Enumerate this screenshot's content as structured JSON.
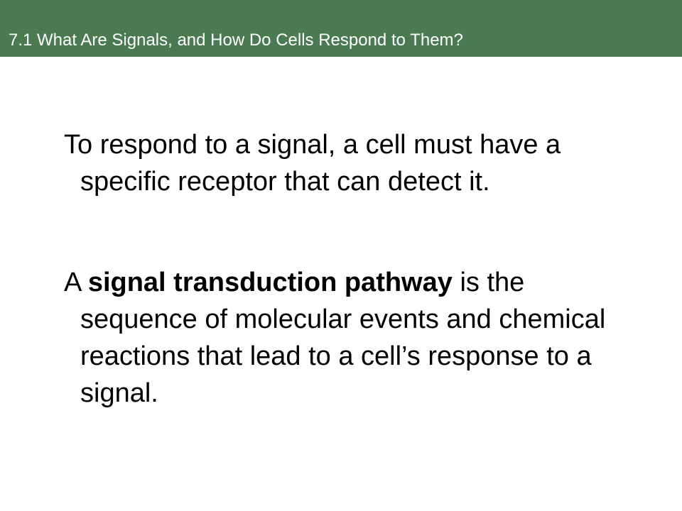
{
  "header": {
    "title": "7.1 What Are Signals, and How Do Cells Respond to Them?",
    "background_color": "#4a7a52",
    "text_color": "#ffffff"
  },
  "body": {
    "paragraph_1": "To respond to a signal, a cell must have a specific receptor that can detect it.",
    "paragraph_2": {
      "prefix": "A ",
      "term": "signal transduction pathway",
      "suffix": " is the sequence of molecular events and chemical reactions that lead to a cell’s response to a signal."
    }
  }
}
